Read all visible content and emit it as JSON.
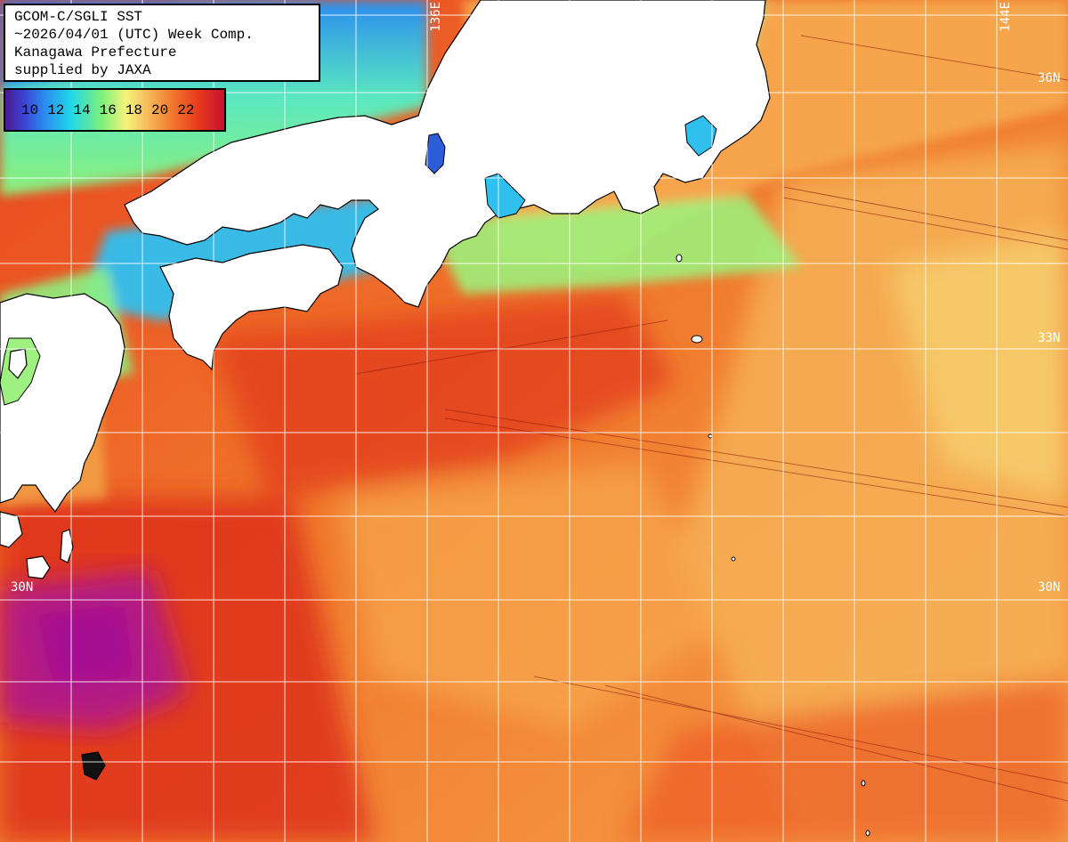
{
  "title": {
    "line1": "GCOM-C/SGLI SST",
    "line2": "~2026/04/01 (UTC) Week Comp.",
    "line3": "Kanagawa Prefecture",
    "line4": "supplied by JAXA"
  },
  "legend": {
    "ticks": [
      "10",
      "12",
      "14",
      "16",
      "18",
      "20",
      "22"
    ]
  },
  "grid_labels": {
    "lon_136": "136E",
    "lon_144": "144E",
    "lat_36": "36N",
    "lat_33": "33N",
    "lat_30_left": "30N",
    "lat_30_right": "30N"
  },
  "colors": {
    "land": "#ffffff",
    "coast": "#000000",
    "grid": "#ffffff",
    "warm_core": "#d8221c",
    "warm": "#f07a2c",
    "mild": "#f6b460",
    "cool_green": "#8cf07a",
    "cool_cyan": "#28c8ee",
    "cold_blue": "#2c5cd8",
    "kuroshio_purple": "#b0168c"
  }
}
